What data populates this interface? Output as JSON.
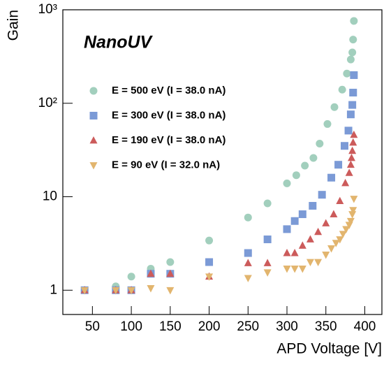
{
  "chart_data": {
    "type": "scatter",
    "annotation": "NanoUV",
    "x_label": "APD Voltage [V]",
    "y_label": "Gain",
    "log_y": true,
    "xlim": [
      12,
      422
    ],
    "ylim": [
      0.55,
      1000
    ],
    "xticks": [
      50,
      100,
      150,
      200,
      250,
      300,
      350,
      400
    ],
    "yticks": [
      1,
      10,
      {
        "value": 100,
        "label": "10²"
      },
      {
        "value": 1000,
        "label": "10³"
      }
    ],
    "series": [
      {
        "name": "E = 500 eV (I = 38.0 nA)",
        "color": "#a2cfbd",
        "marker": "circle",
        "x": [
          40,
          80,
          100,
          125,
          150,
          200,
          250,
          275,
          300,
          312,
          323,
          334,
          342,
          352,
          361,
          371,
          377,
          382,
          384,
          385,
          386
        ],
        "values": [
          1,
          1.1,
          1.4,
          1.7,
          2.0,
          3.4,
          6.0,
          8.5,
          13.9,
          17,
          21.5,
          26,
          37,
          60,
          91,
          140,
          208,
          294,
          350,
          480,
          760
        ]
      },
      {
        "name": "E = 300 eV (I = 38.0 nA)",
        "color": "#7b9ad6",
        "marker": "square",
        "x": [
          40,
          80,
          100,
          125,
          150,
          200,
          250,
          275,
          300,
          310,
          320,
          333,
          345,
          357,
          366,
          374,
          379,
          382,
          384,
          385,
          386
        ],
        "values": [
          1,
          1,
          1,
          1.5,
          1.5,
          2.0,
          2.5,
          3.5,
          4.5,
          5.5,
          6.5,
          8,
          10.5,
          16,
          22,
          35,
          51,
          76,
          96,
          130,
          200
        ]
      },
      {
        "name": "E = 190 eV (I = 38.0 nA)",
        "color": "#cc5b5b",
        "marker": "triangle",
        "x": [
          40,
          80,
          100,
          125,
          150,
          200,
          250,
          275,
          300,
          310,
          320,
          330,
          340,
          350,
          360,
          368,
          375,
          380,
          382,
          383,
          384,
          385,
          386
        ],
        "values": [
          1,
          1,
          1,
          1.5,
          1.5,
          1.4,
          1.95,
          1.95,
          2.5,
          2.5,
          3,
          3.5,
          4.2,
          5.2,
          6.5,
          9,
          14,
          18,
          22,
          26,
          31,
          38,
          46
        ]
      },
      {
        "name": "E = 90 eV (I = 32.0 nA)",
        "color": "#e2b56e",
        "marker": "triangle-down",
        "x": [
          40,
          80,
          100,
          125,
          150,
          200,
          250,
          275,
          300,
          310,
          320,
          330,
          340,
          350,
          357,
          363,
          368,
          372,
          376,
          380,
          382,
          384,
          385,
          386
        ],
        "values": [
          1,
          1,
          1,
          1.05,
          1.0,
          1.4,
          1.35,
          1.55,
          1.7,
          1.7,
          1.7,
          2.0,
          2.0,
          2.4,
          2.8,
          3.2,
          3.5,
          4.0,
          4.5,
          5.0,
          5.5,
          6.5,
          7.2,
          9.5
        ]
      }
    ]
  }
}
